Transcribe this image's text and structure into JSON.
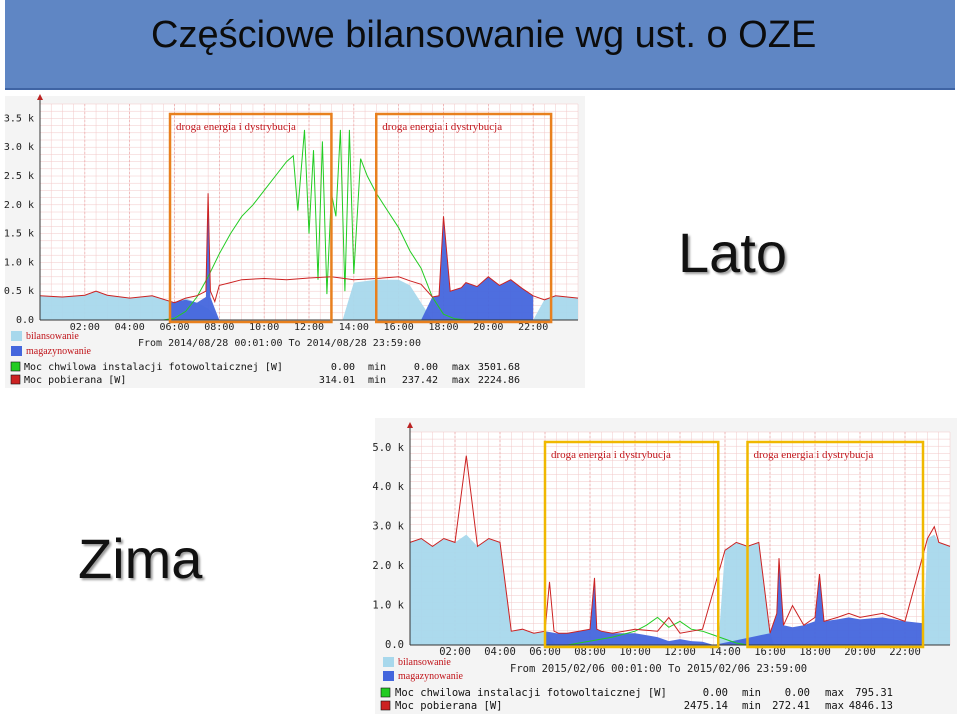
{
  "slide": {
    "title": "Częściowe bilansowanie wg ust. o OZE",
    "label_summer": "Lato",
    "label_winter": "Zima"
  },
  "colors": {
    "title_bg": "#5f86c4",
    "pv": "#22cc22",
    "load": "#cc2222",
    "bilansowanie": "#a8d8ec",
    "magazynowanie": "#4466dd",
    "summer_box": "#e8801e",
    "winter_box": "#f0b800"
  },
  "chart_data": [
    {
      "type": "area",
      "id": "summer",
      "title": "",
      "xlabel": "",
      "ylabel": "",
      "x_ticks": [
        "02:00",
        "04:00",
        "06:00",
        "08:00",
        "10:00",
        "12:00",
        "14:00",
        "16:00",
        "18:00",
        "20:00",
        "22:00"
      ],
      "y_ticks": [
        "0.0",
        "0.5 k",
        "1.0 k",
        "1.5 k",
        "2.0 k",
        "2.5 k",
        "3.0 k",
        "3.5 k"
      ],
      "xlim": [
        0,
        24
      ],
      "ylim": [
        0,
        3750
      ],
      "grid": true,
      "annotations": [
        {
          "text": "droga energia i dystrybucja",
          "x_from": 5.8,
          "x_to": 13.0
        },
        {
          "text": "droga energia i dystrybucja",
          "x_from": 15.0,
          "x_to": 22.8
        }
      ],
      "legend_swatches": [
        "bilansowanie",
        "magazynowanie"
      ],
      "period": "From 2014/08/28 00:01:00 To 2014/08/28 23:59:00",
      "series": [
        {
          "name": "Moc chwilowa instalacji fotowoltaicznej [W]",
          "stats": {
            "current": "0.00",
            "min": "0.00",
            "max": "3501.68"
          },
          "x": [
            5.5,
            6.0,
            6.5,
            7.0,
            7.5,
            8.0,
            8.5,
            9.0,
            9.5,
            10.0,
            10.5,
            11.0,
            11.3,
            11.5,
            11.8,
            12.0,
            12.2,
            12.4,
            12.6,
            12.8,
            13.0,
            13.2,
            13.4,
            13.6,
            13.8,
            14.0,
            14.3,
            14.6,
            15.0,
            15.5,
            16.0,
            16.5,
            17.0,
            17.5,
            18.0,
            18.5,
            19.0
          ],
          "y": [
            0,
            30,
            150,
            400,
            750,
            1150,
            1500,
            1800,
            2000,
            2250,
            2500,
            2750,
            2850,
            1900,
            3300,
            1500,
            2950,
            700,
            3100,
            450,
            2200,
            1800,
            3300,
            500,
            3300,
            800,
            2800,
            2500,
            2200,
            1900,
            1600,
            1200,
            900,
            400,
            100,
            20,
            0
          ]
        },
        {
          "name": "Moc pobierana [W]",
          "stats": {
            "current": "314.01",
            "min": "237.42",
            "max": "2224.86"
          },
          "x": [
            0,
            1,
            2,
            2.5,
            3,
            4,
            5,
            6,
            6.5,
            7,
            7.4,
            7.5,
            7.6,
            7.8,
            8,
            8.5,
            9,
            10,
            11,
            12,
            13,
            14,
            15,
            16,
            16.5,
            17,
            17.5,
            17.8,
            18,
            18.3,
            18.8,
            19,
            19.5,
            20,
            20.5,
            21,
            21.5,
            22,
            22.5,
            23,
            24
          ],
          "y": [
            420,
            400,
            430,
            500,
            430,
            380,
            420,
            300,
            380,
            420,
            500,
            2200,
            500,
            320,
            600,
            650,
            700,
            720,
            700,
            730,
            750,
            700,
            720,
            750,
            680,
            620,
            400,
            420,
            1800,
            500,
            560,
            650,
            580,
            750,
            600,
            700,
            550,
            420,
            350,
            420,
            380
          ]
        },
        {
          "name": "bilansowanie",
          "x": [
            0,
            1,
            2,
            2.5,
            3,
            4,
            5,
            6,
            6.5,
            7,
            7.5,
            8,
            13.5,
            14,
            15,
            16,
            16.5,
            17,
            17.5,
            22,
            22.5,
            23,
            24
          ],
          "y": [
            420,
            400,
            430,
            500,
            430,
            380,
            420,
            300,
            380,
            300,
            200,
            0,
            0,
            650,
            700,
            700,
            600,
            300,
            0,
            0,
            350,
            420,
            380
          ]
        },
        {
          "name": "magazynowanie",
          "x": [
            5.8,
            6.5,
            7.0,
            7.4,
            7.5,
            7.6,
            7.8,
            8.0,
            17.0,
            17.5,
            17.8,
            18.0,
            18.3,
            18.8,
            19.0,
            19.5,
            20.0,
            20.5,
            21.0,
            21.5,
            22.0
          ],
          "y": [
            300,
            350,
            300,
            400,
            2100,
            400,
            200,
            0,
            0,
            400,
            420,
            1800,
            500,
            560,
            650,
            580,
            750,
            600,
            700,
            550,
            420
          ]
        }
      ]
    },
    {
      "type": "area",
      "id": "winter",
      "title": "",
      "xlabel": "",
      "ylabel": "",
      "x_ticks": [
        "02:00",
        "04:00",
        "06:00",
        "08:00",
        "10:00",
        "12:00",
        "14:00",
        "16:00",
        "18:00",
        "20:00",
        "22:00"
      ],
      "y_ticks": [
        "0.0",
        "1.0 k",
        "2.0 k",
        "3.0 k",
        "4.0 k",
        "5.0 k"
      ],
      "xlim": [
        0,
        24
      ],
      "ylim": [
        0,
        5400
      ],
      "grid": true,
      "annotations": [
        {
          "text": "droga energia i dystrybucja",
          "x_from": 6.0,
          "x_to": 13.7
        },
        {
          "text": "droga energia i dystrybucja",
          "x_from": 15.0,
          "x_to": 22.8
        }
      ],
      "legend_swatches": [
        "bilansowanie",
        "magazynowanie"
      ],
      "period": "From 2015/02/06 00:01:00 To 2015/02/06 23:59:00",
      "series": [
        {
          "name": "Moc chwilowa instalacji fotowoltaicznej [W]",
          "stats": {
            "current": "0.00",
            "min": "0.00",
            "max": "795.31"
          },
          "x": [
            7.0,
            8.0,
            9.0,
            10.0,
            10.5,
            11.0,
            11.5,
            12.0,
            12.5,
            13.0,
            13.5,
            14.0,
            14.5,
            15.0
          ],
          "y": [
            0,
            100,
            200,
            350,
            500,
            700,
            450,
            600,
            400,
            350,
            250,
            150,
            50,
            0
          ]
        },
        {
          "name": "Moc pobierana [W]",
          "stats": {
            "current": "2475.14",
            "min": "272.41",
            "max": "4846.13"
          },
          "x": [
            0,
            0.5,
            1,
            1.5,
            2,
            2.5,
            3,
            3.5,
            4,
            4.5,
            5,
            5.5,
            6,
            6.2,
            6.4,
            6.6,
            7,
            7.5,
            8,
            8.2,
            8.3,
            8.5,
            9,
            10,
            11,
            11.5,
            12,
            13,
            14,
            14.5,
            15,
            15.5,
            16,
            16.3,
            16.4,
            16.6,
            17,
            17.5,
            18,
            18.2,
            18.4,
            19,
            19.5,
            20,
            21,
            22,
            23,
            23.3,
            23.5,
            24
          ],
          "y": [
            2600,
            2700,
            2500,
            2700,
            2600,
            4800,
            2500,
            2700,
            2600,
            350,
            400,
            300,
            350,
            1600,
            350,
            300,
            300,
            350,
            400,
            1700,
            400,
            350,
            300,
            400,
            350,
            700,
            300,
            400,
            2400,
            2600,
            2500,
            2600,
            300,
            800,
            2200,
            500,
            1000,
            500,
            700,
            1800,
            600,
            700,
            800,
            700,
            800,
            600,
            2700,
            3000,
            2600,
            2500
          ]
        },
        {
          "name": "bilansowanie",
          "x": [
            0,
            0.5,
            1,
            1.5,
            2,
            2.5,
            3,
            3.5,
            4,
            4.5,
            5,
            5.5,
            6,
            6.5,
            13.7,
            14,
            14.5,
            15,
            15.5,
            16,
            16.2,
            22.8,
            23,
            23.3,
            23.5,
            24
          ],
          "y": [
            2600,
            2700,
            2500,
            2700,
            2600,
            2800,
            2500,
            2700,
            2600,
            350,
            400,
            300,
            350,
            0,
            0,
            2400,
            2600,
            2500,
            2600,
            300,
            0,
            0,
            2700,
            2800,
            2600,
            2500
          ]
        },
        {
          "name": "magazynowanie",
          "x": [
            6.0,
            6.5,
            7,
            7.5,
            8,
            8.2,
            8.3,
            8.5,
            9,
            10,
            11,
            11.5,
            12,
            12.5,
            13,
            13.5,
            16.0,
            16.3,
            16.4,
            16.6,
            17,
            17.5,
            18,
            18.2,
            18.4,
            19,
            19.5,
            20,
            21,
            22,
            22.8
          ],
          "y": [
            350,
            300,
            300,
            350,
            400,
            1700,
            400,
            350,
            300,
            300,
            200,
            100,
            150,
            100,
            80,
            0,
            300,
            800,
            2200,
            500,
            450,
            500,
            600,
            1800,
            600,
            650,
            700,
            650,
            700,
            600,
            550
          ]
        }
      ]
    }
  ]
}
